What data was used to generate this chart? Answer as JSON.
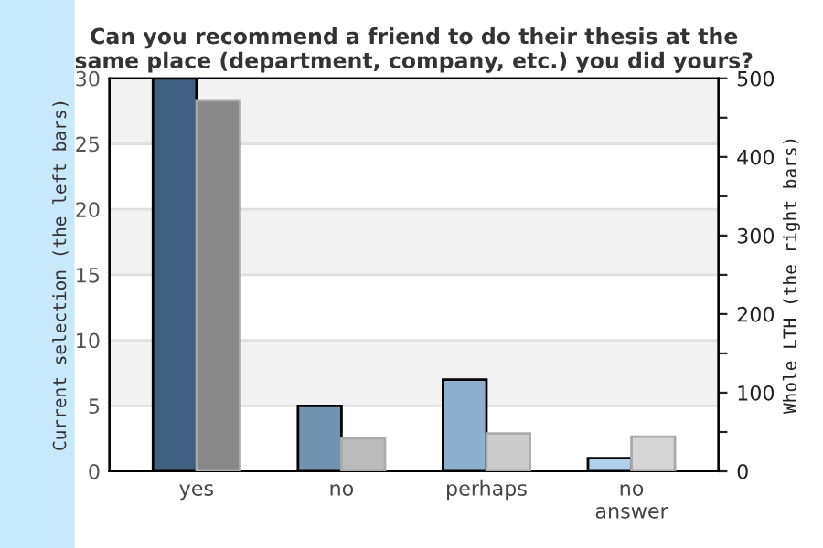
{
  "chart_data": {
    "type": "bar",
    "title": "Can you recommend a friend to do their thesis at the\nsame place (department, company, etc.) you did yours?",
    "categories": [
      "yes",
      "no",
      "perhaps",
      "no\nanswer"
    ],
    "ylabel": "Current selection (the left bars)",
    "y2label": "Whole LTH (the right bars)",
    "series": [
      {
        "colors": [
          "#3f6080",
          "#7393b0",
          "#8fb0cc",
          "#b0d0ea"
        ],
        "values": [
          30,
          5,
          7,
          1
        ]
      },
      {
        "colors": [
          "#888888",
          "#bbbbbb",
          "#cccccc",
          "#d5d5d5"
        ],
        "values": [
          472,
          42,
          48,
          44
        ],
        "axis": "y2"
      }
    ],
    "ylim": [
      0,
      30
    ],
    "yticks": [
      0,
      5,
      10,
      15,
      20,
      25,
      30
    ],
    "y2lim": [
      0,
      500
    ],
    "y2ticks": [
      0,
      {
        "value": 50,
        "label": null
      },
      100,
      {
        "value": 150,
        "label": null
      },
      200,
      {
        "value": 250,
        "label": null
      },
      300,
      {
        "value": 350,
        "label": null
      },
      400,
      {
        "value": 450,
        "label": null
      },
      500
    ],
    "grid": "y"
  }
}
